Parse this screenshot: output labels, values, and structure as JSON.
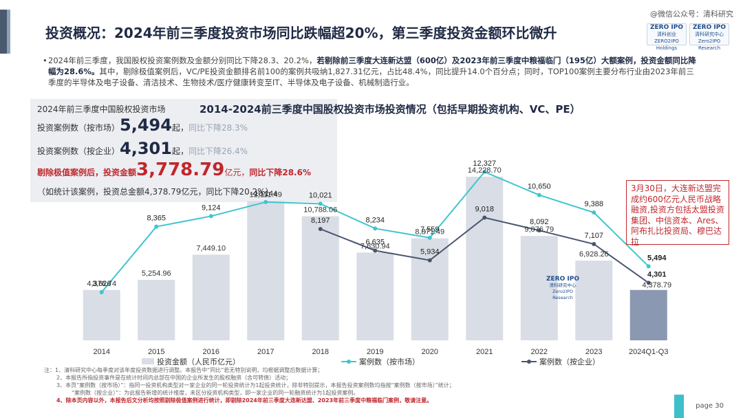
{
  "watermark": "@微信公众号：清科研究",
  "title": "投资概况：2024年前三季度投资市场同比跌幅超20%，第三季度投资金额环比微升",
  "logos": {
    "left": {
      "line1": "ZERO IPO",
      "line2": "清科创业",
      "line3": "ZERO2IPO Holdings"
    },
    "right": {
      "line1": "ZERO IPO",
      "line2": "清科研究中心",
      "line3": "Zero2IPO Research"
    }
  },
  "summary": {
    "part1": "2024年前三季度，我国股权投资案例数及金额分别同比下降28.3、20.2%，",
    "bold": "若剔除前三季度大连新达盟（600亿）及2023年前三季度中粮福临门（195亿）大额案例，投资金额同比降幅为28.6%。",
    "part2": "其中，剔除极值案例后，VC/PE投资金额排名前100的案例共吸纳1,827.31亿元，占比48.4%，同比提升14.0个百分点；同时，TOP100案例主要分布行业由2023年前三季度的半导体及电子设备、清洁技术、生物技术/医疗健康转变至IT、半导体及电子设备、机械制造行业。"
  },
  "stats": {
    "heading": "2024年前三季度中国股权投资市场",
    "row1_label": "投资案例数（按市场）",
    "row1_value": "5,494",
    "row1_unit": "起，",
    "row1_change": "同比下降28.3%",
    "row2_label": "投资案例数（按企业）",
    "row2_value": "4,301",
    "row2_unit": "起，",
    "row2_change": "同比下降26.4%",
    "row3_label": "剔除极值案例后，投资金额",
    "row3_value": "3,778.79",
    "row3_unit": "亿元，",
    "row3_change": "同比下降28.6%",
    "row4": "（如统计该案例，投资总金额4,378.79亿元，同比下降20.2%）"
  },
  "chart_data": {
    "type": "bar",
    "title": "2014-2024前三季度中国股权投资市场投资情况（包括早期投资机构、VC、PE）",
    "categories": [
      "2014",
      "2015",
      "2016",
      "2017",
      "2018",
      "2019",
      "2020",
      "2021",
      "2022",
      "2023",
      "2024Q1-Q3"
    ],
    "series": [
      {
        "name": "投资金额（人民币亿元）",
        "kind": "bar",
        "color": "#d9dde5",
        "highlight_color": "#8a98b1",
        "values": [
          4376.74,
          5254.96,
          7449.1,
          12111.49,
          10788.06,
          7630.94,
          8871.49,
          14228.7,
          9076.79,
          6928.26,
          4378.79
        ],
        "labels": [
          "4,376.74",
          "5,254.96",
          "7,449.10",
          "12,111.49",
          "10,788.06",
          "7,630.94",
          "8,871.49",
          "14,228.70",
          "9,076.79",
          "6,928.26",
          "4,378.79"
        ]
      },
      {
        "name": "案例数（按市场）",
        "kind": "line",
        "color": "#3fc5cf",
        "values": [
          3626,
          8365,
          9124,
          10144,
          10021,
          8234,
          7559,
          12327,
          10650,
          9388,
          5494
        ],
        "labels": [
          "3,626",
          "8,365",
          "9,124",
          "10,144",
          "10,021",
          "8,234",
          "7,559",
          "12,327",
          "10,650",
          "9,388",
          "5,494"
        ]
      },
      {
        "name": "案例数（按企业）",
        "kind": "line",
        "color": "#4a5570",
        "values": [
          null,
          null,
          null,
          null,
          8197,
          6635,
          5934,
          9018,
          8092,
          7107,
          4301
        ],
        "labels": [
          "",
          "",
          "",
          "",
          "8,197",
          "6,635",
          "5,934",
          "9,018",
          "8,092",
          "7,107",
          "4,301"
        ]
      }
    ],
    "ylim": [
      0,
      15500
    ],
    "grid": false,
    "legend_placement": "bottom"
  },
  "annotation": "3月30日，大连新达盟完成约600亿元人民币战略融资,投资方包括太盟投资集团、中信资本、Ares、阿布扎比投资局、穆巴达拉",
  "inchart_logo": {
    "line1": "ZERO IPO",
    "line2": "清科研究中心",
    "line3": "Zero2IPO Research"
  },
  "notes": [
    "注：1、清科研究中心每季度对该年度投资数据进行调整。本报告中“同比”若无特别说明，均根据调整后数据计算；",
    "2、本报告所指投资事件是在统计时间内总部在中国的企业所发生的股权融资（含可转债）活动；",
    "3、本页“案例数（按市场）”：指同一投资机构类型对一家企业的同一轮投资统计为1起投资统计，除非特别提示，本报告投资案例数均指按“案例数（按市场）”统计；",
    "“案例数（按企业）”：为此报告新增的统计维度，未区分投资机构类型，即一家企业的同一轮融资统计为1起投资案例。",
    "4、除本页内容以外，本报告后文分析均按照剔除极值案例进行统计，即剔除2024年前三季度大连新达盟、2023年前三季度中粮福临门案例，敬请注意。"
  ],
  "page": "page  30"
}
